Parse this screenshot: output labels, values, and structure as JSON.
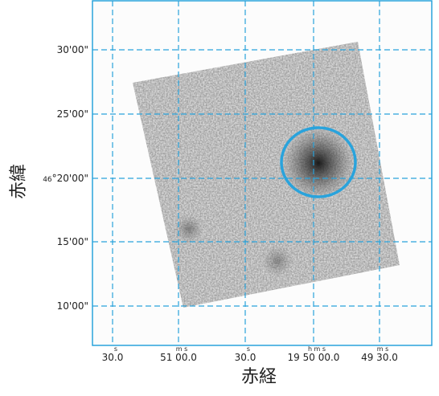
{
  "axes": {
    "x_title": "赤経",
    "y_title": "赤緯"
  },
  "yticks": [
    {
      "text": "30'00\""
    },
    {
      "text": "25'00\""
    },
    {
      "small": "46",
      "text": "°20'00\""
    },
    {
      "text": "15'00\""
    },
    {
      "text": "10'00\""
    }
  ],
  "xticks": [
    {
      "sup": "s",
      "text": "30.0"
    },
    {
      "sup": "m  s",
      "text": "51 00.0"
    },
    {
      "sup": "s",
      "text": "30.0"
    },
    {
      "sup": "h  m  s",
      "text": "19 50 00.0"
    },
    {
      "sup": "m  s",
      "text": "49 30.0"
    }
  ]
}
